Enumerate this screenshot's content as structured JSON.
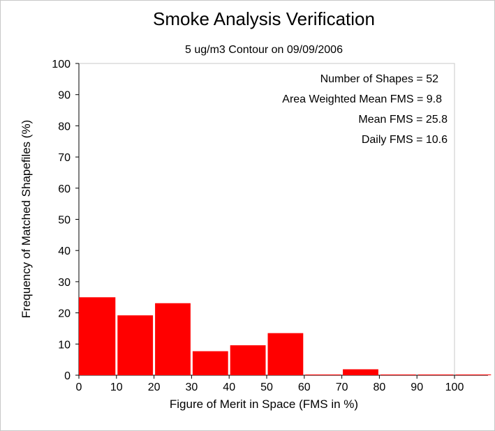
{
  "chart_data": {
    "type": "bar",
    "title": "Smoke Analysis Verification",
    "subtitle": "5 ug/m3 Contour on 09/09/2006",
    "xlabel": "Figure of Merit in Space (FMS in %)",
    "ylabel": "Frequency of Matched Shapefiles (%)",
    "xlim": [
      0,
      110
    ],
    "ylim": [
      0,
      100
    ],
    "xticks": [
      "0",
      "10",
      "20",
      "30",
      "40",
      "50",
      "60",
      "70",
      "80",
      "90",
      "100"
    ],
    "yticks": [
      "0",
      "10",
      "20",
      "30",
      "40",
      "50",
      "60",
      "70",
      "80",
      "90",
      "100"
    ],
    "bins": [
      {
        "x0": 0,
        "x1": 10,
        "value": 25.0
      },
      {
        "x0": 10,
        "x1": 20,
        "value": 19.2
      },
      {
        "x0": 20,
        "x1": 30,
        "value": 23.1
      },
      {
        "x0": 30,
        "x1": 40,
        "value": 7.7
      },
      {
        "x0": 40,
        "x1": 50,
        "value": 9.6
      },
      {
        "x0": 50,
        "x1": 60,
        "value": 13.5
      },
      {
        "x0": 60,
        "x1": 70,
        "value": 0
      },
      {
        "x0": 70,
        "x1": 80,
        "value": 1.9
      },
      {
        "x0": 80,
        "x1": 90,
        "value": 0
      },
      {
        "x0": 90,
        "x1": 100,
        "value": 0
      },
      {
        "x0": 100,
        "x1": 110,
        "value": 0
      }
    ],
    "bar_color": "#ff0000",
    "grid": false,
    "annotations": [
      "Number of Shapes = 52",
      "Area Weighted Mean FMS = 9.8",
      "Mean FMS = 25.8",
      "Daily FMS = 10.6"
    ]
  }
}
